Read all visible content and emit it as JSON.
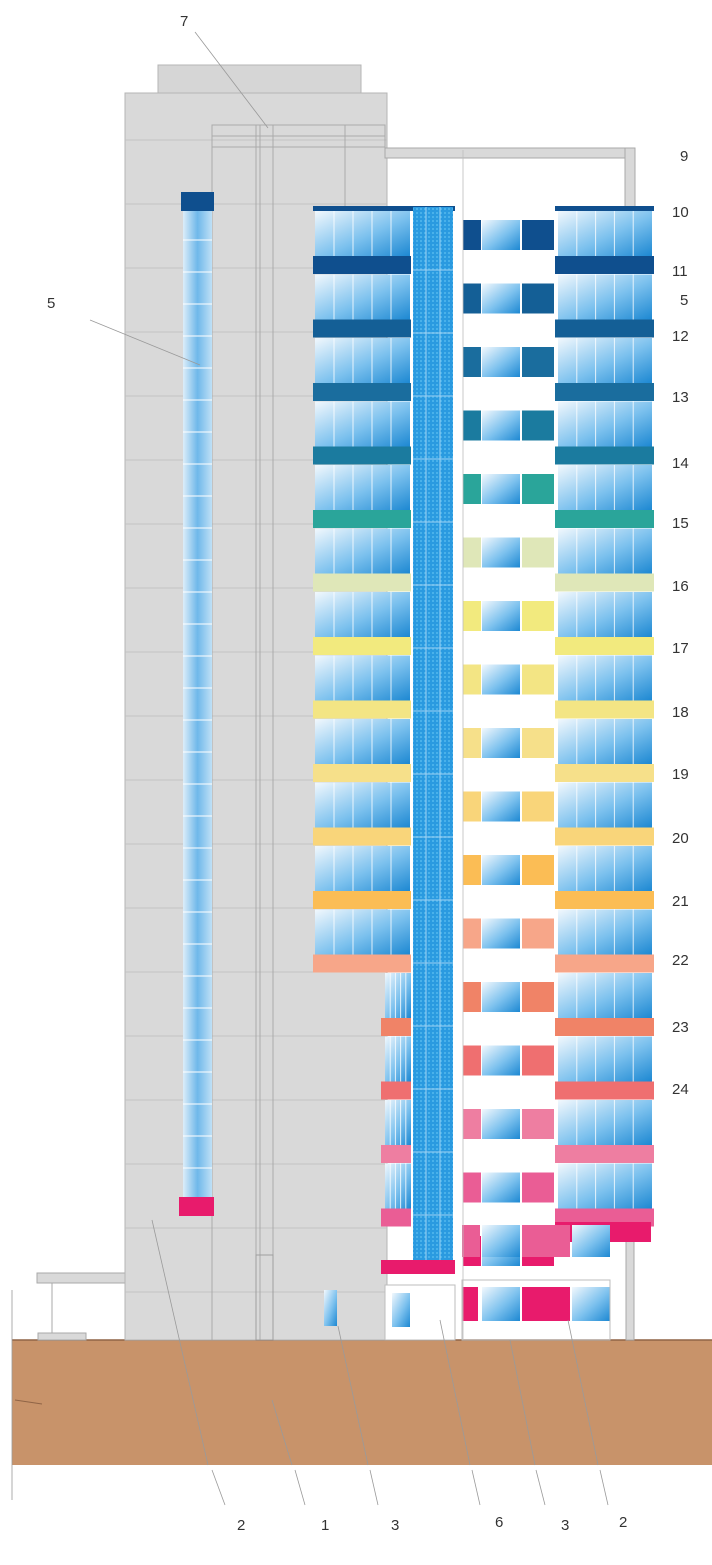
{
  "labels": {
    "top": "7",
    "left": "5",
    "right": [
      "9",
      "10",
      "11",
      "5",
      "12",
      "13",
      "14",
      "15",
      "16",
      "17",
      "18",
      "19",
      "20",
      "21",
      "22",
      "23",
      "24"
    ],
    "bottom": [
      "2",
      "1",
      "3",
      "6",
      "3",
      "2"
    ]
  },
  "colors": {
    "tower_gray": "#d9d9d9",
    "tower_line": "#bdbdbd",
    "ground": "#c8936a",
    "glass_light": "#e6f2fb",
    "glass_dark": "#1f8fd6",
    "mesh_blue": "#2b9de3",
    "band_colors": [
      "#0f4f8e",
      "#145f96",
      "#1a6d9e",
      "#1b7b9f",
      "#2aa59a",
      "#dfe7b8",
      "#f2ea7e",
      "#f3e584",
      "#f6e08a",
      "#f9d57a",
      "#fbbd55",
      "#f7a689",
      "#f08367",
      "#ef6f70",
      "#ee7ea1",
      "#ea5d95",
      "#e81b6c"
    ]
  }
}
